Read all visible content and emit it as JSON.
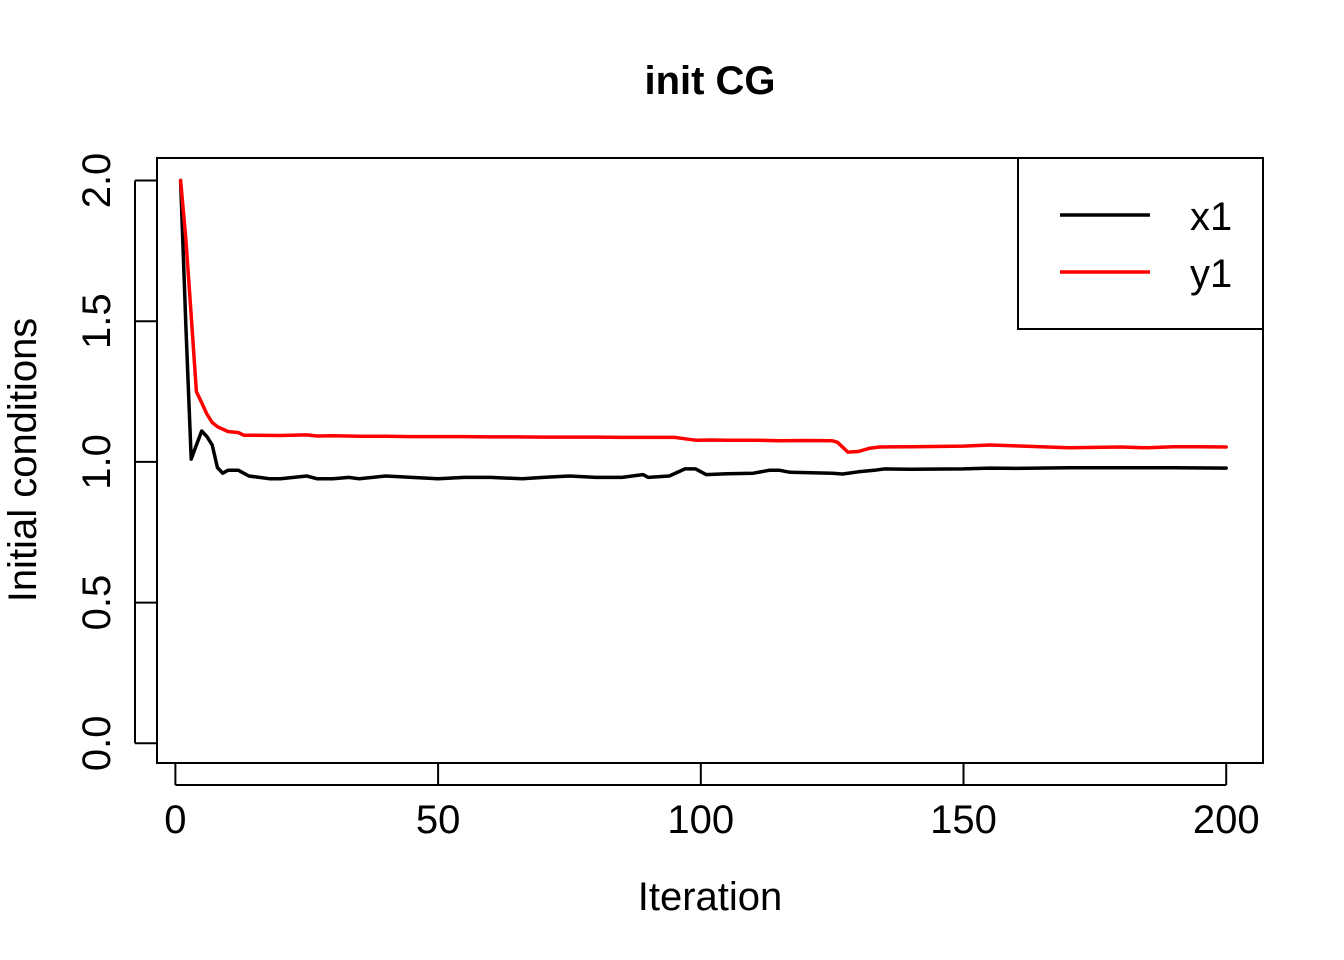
{
  "chart_data": {
    "type": "line",
    "title": "init CG",
    "xlabel": "Iteration",
    "ylabel": "Initial conditions",
    "xlim": [
      -3.5,
      207
    ],
    "ylim": [
      -0.07,
      2.08
    ],
    "xticks": [
      0,
      50,
      100,
      150,
      200
    ],
    "yticks": [
      0.0,
      0.5,
      1.0,
      1.5,
      2.0
    ],
    "xtick_labels": [
      "0",
      "50",
      "100",
      "150",
      "200"
    ],
    "ytick_labels": [
      "0.0",
      "0.5",
      "1.0",
      "1.5",
      "2.0"
    ],
    "legend": {
      "position": "top-right",
      "box": true
    },
    "grid": false,
    "series": [
      {
        "name": "x1",
        "color": "#000000",
        "points": [
          [
            1,
            2.0
          ],
          [
            2,
            1.48
          ],
          [
            3,
            1.01
          ],
          [
            4,
            1.06
          ],
          [
            5,
            1.11
          ],
          [
            6,
            1.09
          ],
          [
            7,
            1.06
          ],
          [
            8,
            0.98
          ],
          [
            9,
            0.96
          ],
          [
            10,
            0.97
          ],
          [
            12,
            0.97
          ],
          [
            14,
            0.95
          ],
          [
            16,
            0.945
          ],
          [
            18,
            0.94
          ],
          [
            20,
            0.94
          ],
          [
            25,
            0.95
          ],
          [
            27,
            0.94
          ],
          [
            30,
            0.94
          ],
          [
            33,
            0.945
          ],
          [
            35,
            0.94
          ],
          [
            40,
            0.95
          ],
          [
            45,
            0.945
          ],
          [
            50,
            0.94
          ],
          [
            55,
            0.945
          ],
          [
            60,
            0.945
          ],
          [
            66,
            0.94
          ],
          [
            70,
            0.945
          ],
          [
            75,
            0.95
          ],
          [
            80,
            0.945
          ],
          [
            85,
            0.945
          ],
          [
            89,
            0.955
          ],
          [
            90,
            0.945
          ],
          [
            94,
            0.95
          ],
          [
            97,
            0.975
          ],
          [
            99,
            0.975
          ],
          [
            101,
            0.955
          ],
          [
            105,
            0.958
          ],
          [
            110,
            0.96
          ],
          [
            113,
            0.97
          ],
          [
            115,
            0.97
          ],
          [
            117,
            0.963
          ],
          [
            120,
            0.962
          ],
          [
            125,
            0.96
          ],
          [
            127,
            0.957
          ],
          [
            130,
            0.965
          ],
          [
            133,
            0.97
          ],
          [
            135,
            0.975
          ],
          [
            140,
            0.974
          ],
          [
            150,
            0.975
          ],
          [
            155,
            0.978
          ],
          [
            160,
            0.977
          ],
          [
            170,
            0.979
          ],
          [
            180,
            0.979
          ],
          [
            190,
            0.979
          ],
          [
            200,
            0.978
          ]
        ]
      },
      {
        "name": "y1",
        "color": "#ff0000",
        "points": [
          [
            1,
            2.0
          ],
          [
            2,
            1.79
          ],
          [
            3,
            1.52
          ],
          [
            4,
            1.25
          ],
          [
            5,
            1.21
          ],
          [
            6,
            1.17
          ],
          [
            7,
            1.14
          ],
          [
            8,
            1.125
          ],
          [
            10,
            1.108
          ],
          [
            12,
            1.104
          ],
          [
            13,
            1.095
          ],
          [
            15,
            1.095
          ],
          [
            20,
            1.094
          ],
          [
            25,
            1.096
          ],
          [
            27,
            1.092
          ],
          [
            30,
            1.093
          ],
          [
            35,
            1.091
          ],
          [
            40,
            1.091
          ],
          [
            45,
            1.09
          ],
          [
            50,
            1.09
          ],
          [
            55,
            1.09
          ],
          [
            60,
            1.089
          ],
          [
            65,
            1.089
          ],
          [
            70,
            1.088
          ],
          [
            75,
            1.088
          ],
          [
            80,
            1.088
          ],
          [
            85,
            1.087
          ],
          [
            90,
            1.087
          ],
          [
            95,
            1.087
          ],
          [
            97,
            1.082
          ],
          [
            99,
            1.077
          ],
          [
            102,
            1.078
          ],
          [
            105,
            1.077
          ],
          [
            110,
            1.077
          ],
          [
            115,
            1.075
          ],
          [
            120,
            1.076
          ],
          [
            125,
            1.075
          ],
          [
            126,
            1.07
          ],
          [
            128,
            1.035
          ],
          [
            130,
            1.037
          ],
          [
            132,
            1.048
          ],
          [
            134,
            1.053
          ],
          [
            140,
            1.054
          ],
          [
            150,
            1.056
          ],
          [
            155,
            1.06
          ],
          [
            160,
            1.057
          ],
          [
            170,
            1.05
          ],
          [
            180,
            1.053
          ],
          [
            185,
            1.05
          ],
          [
            190,
            1.054
          ],
          [
            195,
            1.054
          ],
          [
            200,
            1.053
          ]
        ]
      }
    ]
  }
}
